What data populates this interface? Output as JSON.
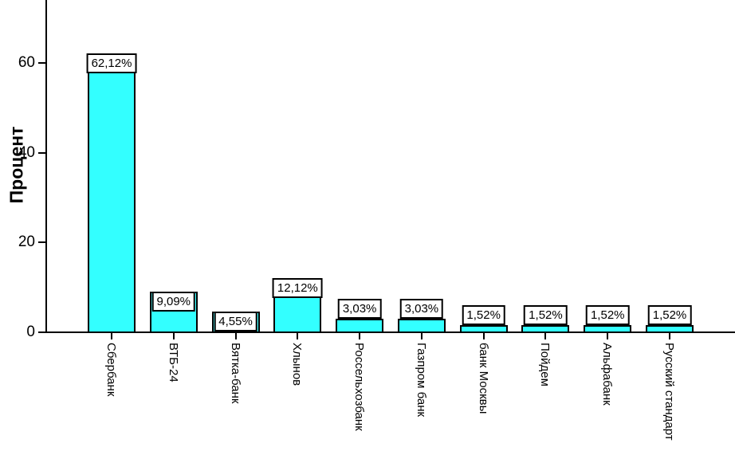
{
  "chart_data": {
    "type": "bar",
    "title": "",
    "xlabel": "",
    "ylabel": "Процент",
    "categories": [
      "Сбербанк",
      "ВТБ-24",
      "Вятка-банк",
      "Хлынов",
      "Россельхозбанк",
      "Газпром банк",
      "банк Москвы",
      "Пойдем",
      "Альфабанк",
      "Русский стандарт"
    ],
    "values": [
      62.12,
      9.09,
      4.55,
      12.12,
      3.03,
      3.03,
      1.52,
      1.52,
      1.52,
      1.52
    ],
    "value_labels": [
      "62,12%",
      "9,09%",
      "4,55%",
      "12,12%",
      "3,03%",
      "3,03%",
      "1,52%",
      "1,52%",
      "1,52%",
      "1,52%"
    ],
    "yticks": [
      "0",
      "20",
      "40",
      "60"
    ],
    "ytick_values": [
      0,
      20,
      40,
      60
    ],
    "ylim": [
      0,
      74
    ],
    "grid": false,
    "legend": "none",
    "colors": {
      "bar_fill": "#33FFFF",
      "bar_border": "#000000",
      "axis": "#000000",
      "label_box_fill": "#FFFFFF",
      "background": "#FFFFFF",
      "text": "#000000"
    }
  }
}
